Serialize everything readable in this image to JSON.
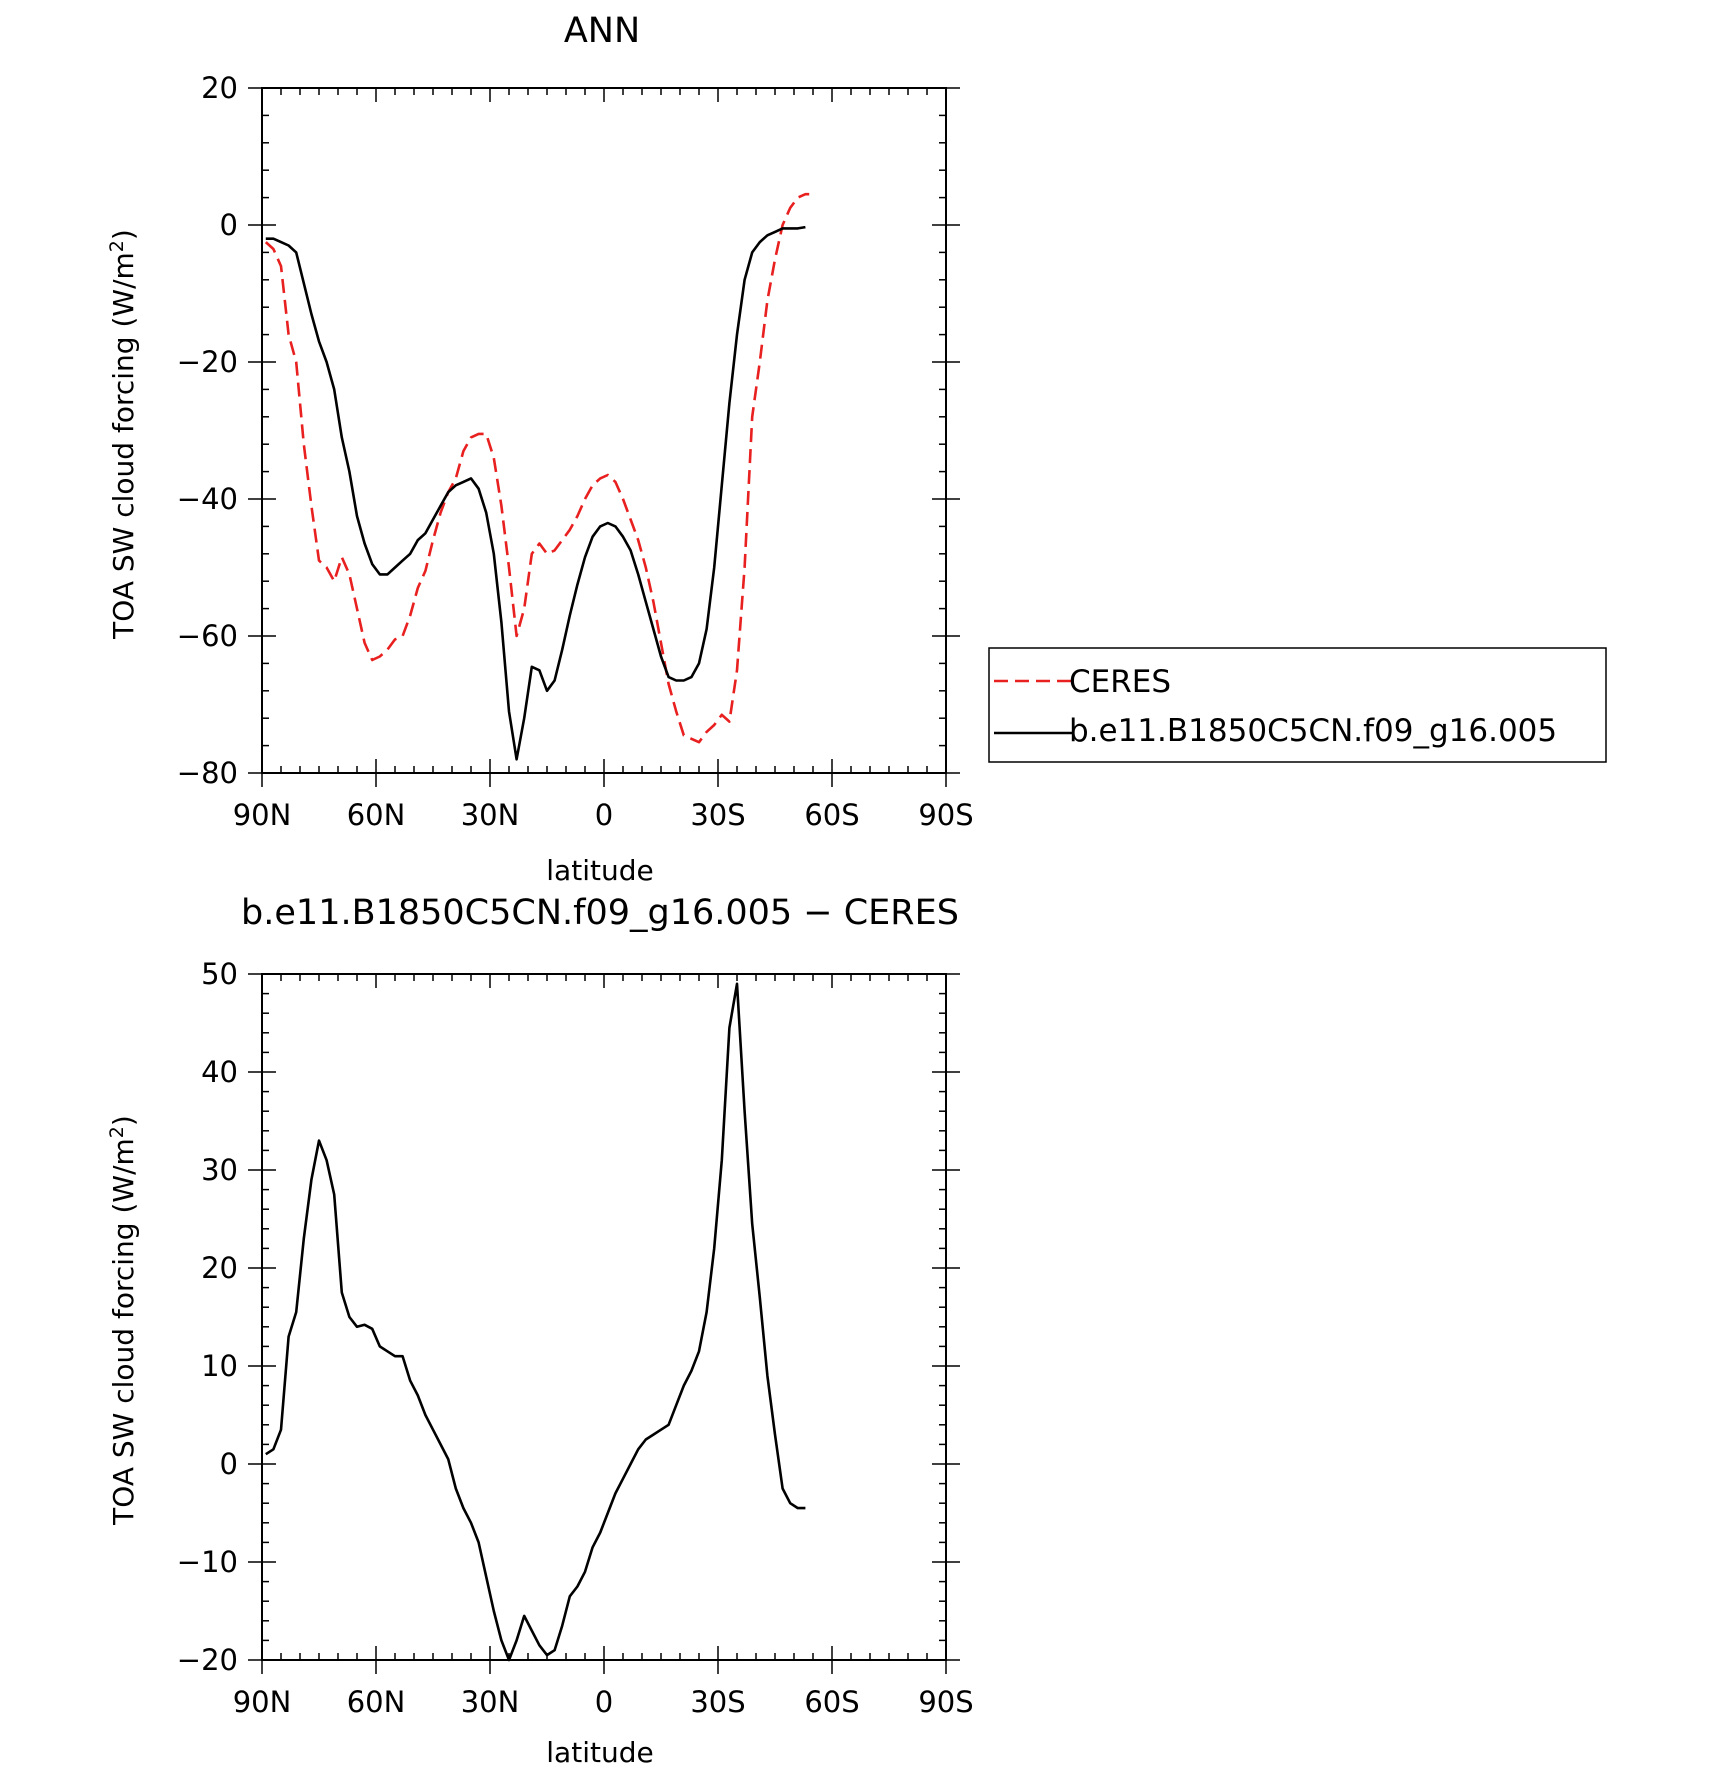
{
  "chart_data": [
    {
      "type": "line",
      "title": "ANN",
      "xlabel": "latitude",
      "ylabel": "TOA SW cloud forcing (W/m",
      "ylabel_sup": "2",
      "ylabel_close": ")",
      "xlim": [
        90,
        -90
      ],
      "ylim": [
        -80,
        20
      ],
      "xticks": [
        {
          "v": 90,
          "label": "90N"
        },
        {
          "v": 60,
          "label": "60N"
        },
        {
          "v": 30,
          "label": "30N"
        },
        {
          "v": 0,
          "label": "0"
        },
        {
          "v": -30,
          "label": "30S"
        },
        {
          "v": -60,
          "label": "60S"
        },
        {
          "v": -90,
          "label": "90S"
        }
      ],
      "yticks": [
        {
          "v": 20,
          "label": "20"
        },
        {
          "v": 0,
          "label": "0"
        },
        {
          "v": -20,
          "label": "−20"
        },
        {
          "v": -40,
          "label": "−40"
        },
        {
          "v": -60,
          "label": "−60"
        },
        {
          "v": -80,
          "label": "−80"
        }
      ],
      "legend_position": "outside-right",
      "series": [
        {
          "name": "CERES",
          "color": "#e8201f",
          "dash": true,
          "points": [
            [
              89,
              -2.5
            ],
            [
              87,
              -3.5
            ],
            [
              85,
              -6
            ],
            [
              83,
              -16
            ],
            [
              81,
              -20
            ],
            [
              79,
              -32
            ],
            [
              77,
              -41
            ],
            [
              75,
              -49
            ],
            [
              73,
              -50
            ],
            [
              71,
              -52
            ],
            [
              69,
              -48.5
            ],
            [
              67,
              -51
            ],
            [
              65,
              -56
            ],
            [
              63,
              -61
            ],
            [
              61,
              -63.5
            ],
            [
              59,
              -63
            ],
            [
              57,
              -62
            ],
            [
              55,
              -60.5
            ],
            [
              53,
              -60
            ],
            [
              51,
              -57
            ],
            [
              49,
              -53
            ],
            [
              47,
              -50.5
            ],
            [
              45,
              -46
            ],
            [
              43,
              -42
            ],
            [
              41,
              -39
            ],
            [
              39,
              -37
            ],
            [
              37,
              -33
            ],
            [
              35,
              -31
            ],
            [
              33,
              -30.5
            ],
            [
              31,
              -30.5
            ],
            [
              29,
              -34
            ],
            [
              27,
              -41
            ],
            [
              25,
              -50
            ],
            [
              23,
              -60
            ],
            [
              21,
              -56
            ],
            [
              19,
              -48
            ],
            [
              17,
              -46.5
            ],
            [
              15,
              -48
            ],
            [
              13,
              -47.5
            ],
            [
              11,
              -46
            ],
            [
              9,
              -44.5
            ],
            [
              7,
              -42.5
            ],
            [
              5,
              -40
            ],
            [
              3,
              -38
            ],
            [
              1,
              -37
            ],
            [
              -1,
              -36.5
            ],
            [
              -3,
              -37.5
            ],
            [
              -5,
              -40
            ],
            [
              -7,
              -43
            ],
            [
              -9,
              -46
            ],
            [
              -11,
              -50
            ],
            [
              -13,
              -55
            ],
            [
              -15,
              -61
            ],
            [
              -17,
              -67
            ],
            [
              -19,
              -71
            ],
            [
              -21,
              -74.5
            ],
            [
              -23,
              -75
            ],
            [
              -25,
              -75.5
            ],
            [
              -27,
              -74
            ],
            [
              -29,
              -73
            ],
            [
              -31,
              -71.5
            ],
            [
              -33,
              -72.5
            ],
            [
              -35,
              -65
            ],
            [
              -37,
              -50
            ],
            [
              -39,
              -28
            ],
            [
              -41,
              -20
            ],
            [
              -43,
              -11
            ],
            [
              -45,
              -5
            ],
            [
              -47,
              0
            ],
            [
              -49,
              2.5
            ],
            [
              -51,
              4
            ],
            [
              -53,
              4.5
            ],
            [
              -54,
              4.5
            ]
          ]
        },
        {
          "name": "b.e11.B1850C5CN.f09_g16.005",
          "color": "#000000",
          "dash": false,
          "points": [
            [
              89,
              -2
            ],
            [
              87,
              -2
            ],
            [
              85,
              -2.5
            ],
            [
              83,
              -3
            ],
            [
              81,
              -4
            ],
            [
              79,
              -8.5
            ],
            [
              77,
              -13
            ],
            [
              75,
              -17
            ],
            [
              73,
              -20
            ],
            [
              71,
              -24
            ],
            [
              69,
              -31
            ],
            [
              67,
              -36
            ],
            [
              65,
              -42.5
            ],
            [
              63,
              -46.5
            ],
            [
              61,
              -49.5
            ],
            [
              59,
              -51
            ],
            [
              57,
              -51
            ],
            [
              55,
              -50
            ],
            [
              53,
              -49
            ],
            [
              51,
              -48
            ],
            [
              49,
              -46
            ],
            [
              47,
              -45
            ],
            [
              45,
              -43
            ],
            [
              43,
              -41
            ],
            [
              41,
              -39
            ],
            [
              39,
              -38
            ],
            [
              37,
              -37.5
            ],
            [
              35,
              -37
            ],
            [
              33,
              -38.5
            ],
            [
              31,
              -42
            ],
            [
              29,
              -48
            ],
            [
              27,
              -58
            ],
            [
              25,
              -71
            ],
            [
              23,
              -78
            ],
            [
              21,
              -72
            ],
            [
              19,
              -64.5
            ],
            [
              17,
              -65
            ],
            [
              15,
              -68
            ],
            [
              13,
              -66.5
            ],
            [
              11,
              -62
            ],
            [
              9,
              -57
            ],
            [
              7,
              -52.5
            ],
            [
              5,
              -48.5
            ],
            [
              3,
              -45.5
            ],
            [
              1,
              -44
            ],
            [
              -1,
              -43.5
            ],
            [
              -3,
              -44
            ],
            [
              -5,
              -45.5
            ],
            [
              -7,
              -47.5
            ],
            [
              -9,
              -51
            ],
            [
              -11,
              -55
            ],
            [
              -13,
              -59
            ],
            [
              -15,
              -63
            ],
            [
              -17,
              -66
            ],
            [
              -19,
              -66.5
            ],
            [
              -21,
              -66.5
            ],
            [
              -23,
              -66
            ],
            [
              -25,
              -64
            ],
            [
              -27,
              -59
            ],
            [
              -29,
              -50
            ],
            [
              -31,
              -38
            ],
            [
              -33,
              -26
            ],
            [
              -35,
              -16
            ],
            [
              -37,
              -8
            ],
            [
              -39,
              -4
            ],
            [
              -41,
              -2.5
            ],
            [
              -43,
              -1.5
            ],
            [
              -45,
              -1
            ],
            [
              -47,
              -0.5
            ],
            [
              -49,
              -0.5
            ],
            [
              -51,
              -0.5
            ],
            [
              -53,
              -0.3
            ]
          ]
        }
      ]
    },
    {
      "type": "line",
      "title": "b.e11.B1850C5CN.f09_g16.005 − CERES",
      "xlabel": "latitude",
      "ylabel": "TOA SW cloud forcing (W/m",
      "ylabel_sup": "2",
      "ylabel_close": ")",
      "xlim": [
        90,
        -90
      ],
      "ylim": [
        -20,
        50
      ],
      "xticks": [
        {
          "v": 90,
          "label": "90N"
        },
        {
          "v": 60,
          "label": "60N"
        },
        {
          "v": 30,
          "label": "30N"
        },
        {
          "v": 0,
          "label": "0"
        },
        {
          "v": -30,
          "label": "30S"
        },
        {
          "v": -60,
          "label": "60S"
        },
        {
          "v": -90,
          "label": "90S"
        }
      ],
      "yticks": [
        {
          "v": 50,
          "label": "50"
        },
        {
          "v": 40,
          "label": "40"
        },
        {
          "v": 30,
          "label": "30"
        },
        {
          "v": 20,
          "label": "20"
        },
        {
          "v": 10,
          "label": "10"
        },
        {
          "v": 0,
          "label": "0"
        },
        {
          "v": -10,
          "label": "−10"
        },
        {
          "v": -20,
          "label": "−20"
        }
      ],
      "series": [
        {
          "color": "#000000",
          "dash": false,
          "points": [
            [
              89,
              1
            ],
            [
              87,
              1.5
            ],
            [
              85,
              3.5
            ],
            [
              83,
              13
            ],
            [
              81,
              15.5
            ],
            [
              79,
              23
            ],
            [
              77,
              29
            ],
            [
              75,
              33
            ],
            [
              73,
              31
            ],
            [
              71,
              27.5
            ],
            [
              69,
              17.5
            ],
            [
              67,
              15
            ],
            [
              65,
              14
            ],
            [
              63,
              14.2
            ],
            [
              61,
              13.8
            ],
            [
              59,
              12
            ],
            [
              57,
              11.5
            ],
            [
              55,
              11
            ],
            [
              53,
              11
            ],
            [
              51,
              8.5
            ],
            [
              49,
              7
            ],
            [
              47,
              5
            ],
            [
              45,
              3.5
            ],
            [
              43,
              2
            ],
            [
              41,
              0.5
            ],
            [
              39,
              -2.5
            ],
            [
              37,
              -4.5
            ],
            [
              35,
              -6
            ],
            [
              33,
              -8
            ],
            [
              31,
              -11.5
            ],
            [
              29,
              -15
            ],
            [
              27,
              -18
            ],
            [
              25,
              -20
            ],
            [
              23,
              -18
            ],
            [
              21,
              -15.5
            ],
            [
              19,
              -17
            ],
            [
              17,
              -18.5
            ],
            [
              15,
              -19.5
            ],
            [
              13,
              -19
            ],
            [
              11,
              -16.5
            ],
            [
              9,
              -13.5
            ],
            [
              7,
              -12.5
            ],
            [
              5,
              -11
            ],
            [
              3,
              -8.5
            ],
            [
              1,
              -7
            ],
            [
              -1,
              -5
            ],
            [
              -3,
              -3
            ],
            [
              -5,
              -1.5
            ],
            [
              -7,
              0
            ],
            [
              -9,
              1.5
            ],
            [
              -11,
              2.5
            ],
            [
              -13,
              3
            ],
            [
              -15,
              3.5
            ],
            [
              -17,
              4
            ],
            [
              -19,
              6
            ],
            [
              -21,
              8
            ],
            [
              -23,
              9.5
            ],
            [
              -25,
              11.5
            ],
            [
              -27,
              15.5
            ],
            [
              -29,
              22
            ],
            [
              -31,
              31
            ],
            [
              -33,
              44.5
            ],
            [
              -35,
              49
            ],
            [
              -37,
              36
            ],
            [
              -39,
              24.5
            ],
            [
              -41,
              17
            ],
            [
              -43,
              9
            ],
            [
              -45,
              3
            ],
            [
              -47,
              -2.5
            ],
            [
              -49,
              -4
            ],
            [
              -51,
              -4.5
            ],
            [
              -53,
              -4.5
            ]
          ]
        }
      ]
    }
  ]
}
